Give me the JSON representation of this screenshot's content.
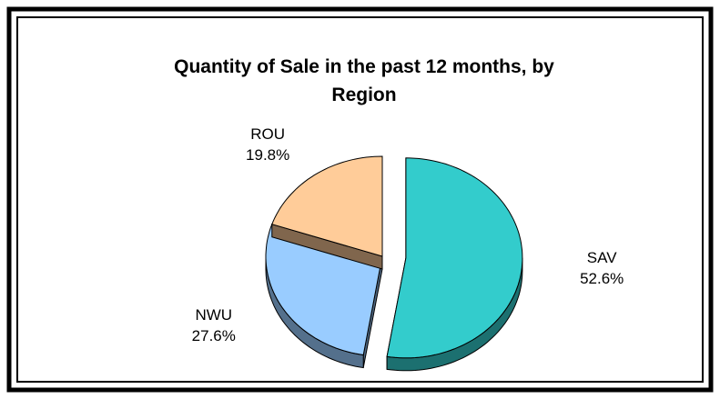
{
  "chart_data": {
    "type": "pie",
    "title": "Quantity of Sale in the past 12 months, by Region",
    "categories": [
      "SAV",
      "NWU",
      "ROU"
    ],
    "values": [
      52.6,
      27.6,
      19.8
    ],
    "value_labels": [
      "52.6%",
      "27.6%",
      "19.8%"
    ],
    "colors": [
      "#33cccc",
      "#99ccff",
      "#ffcc99"
    ]
  }
}
